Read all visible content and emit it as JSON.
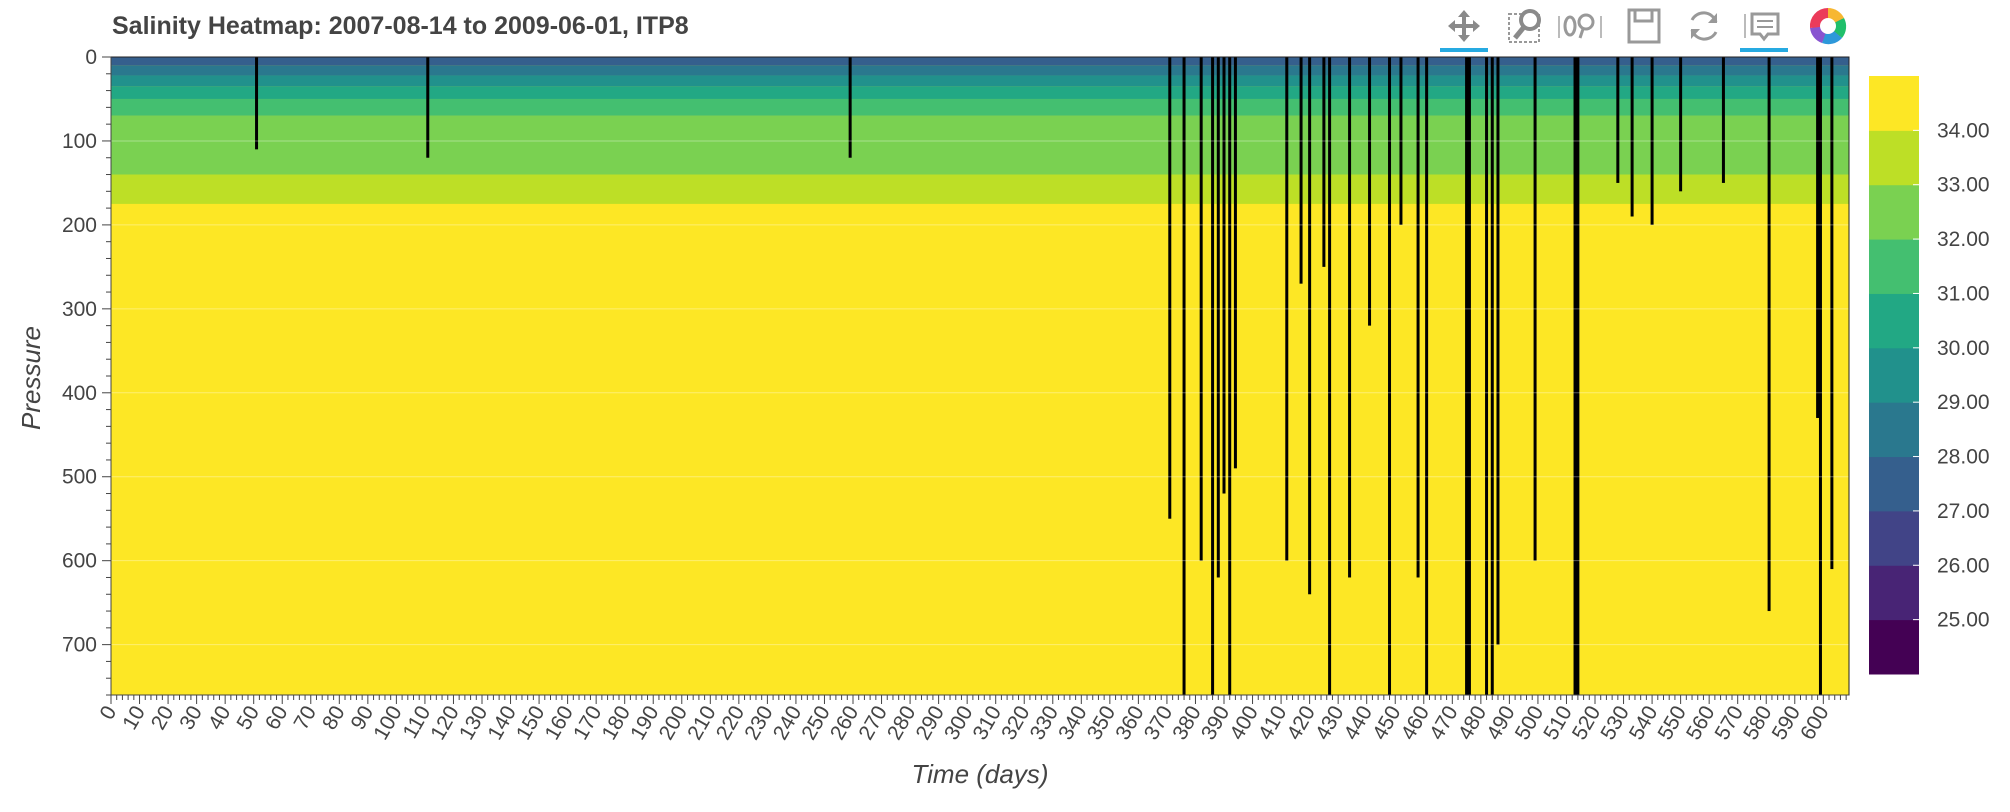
{
  "title": "Salinity Heatmap: 2007-08-14 to 2009-06-01, ITP8",
  "toolbar": {
    "tools": [
      {
        "name": "pan-tool",
        "icon": "move-arrows-icon",
        "active": true
      },
      {
        "name": "box-zoom-tool",
        "icon": "magnifier-box-icon",
        "active": false
      },
      {
        "name": "wheel-zoom-tool",
        "icon": "wheel-zoom-icon",
        "active": false
      },
      {
        "name": "save-tool",
        "icon": "floppy-disk-icon",
        "active": false
      },
      {
        "name": "reset-tool",
        "icon": "refresh-icon",
        "active": false
      },
      {
        "name": "hover-tool",
        "icon": "speech-bubble-icon",
        "active": true
      },
      {
        "name": "bokeh-logo",
        "icon": "bokeh-logo-icon",
        "active": false
      }
    ]
  },
  "chart_data": {
    "type": "heatmap",
    "title": "Salinity Heatmap: 2007-08-14 to 2009-06-01, ITP8",
    "xlabel": "Time (days)",
    "ylabel": "Pressure",
    "xlim": [
      0,
      609
    ],
    "ylim": [
      760,
      0
    ],
    "y_inverted": true,
    "x_ticks": [
      0,
      10,
      20,
      30,
      40,
      50,
      60,
      70,
      80,
      90,
      100,
      110,
      120,
      130,
      140,
      150,
      160,
      170,
      180,
      190,
      200,
      210,
      220,
      230,
      240,
      250,
      260,
      270,
      280,
      290,
      300,
      310,
      320,
      330,
      340,
      350,
      360,
      370,
      380,
      390,
      400,
      410,
      420,
      430,
      440,
      450,
      460,
      470,
      480,
      490,
      500,
      510,
      520,
      530,
      540,
      550,
      560,
      570,
      580,
      590,
      600
    ],
    "y_ticks": [
      0,
      100,
      200,
      300,
      400,
      500,
      600,
      700
    ],
    "colorbar": {
      "palette": [
        "#440154",
        "#482475",
        "#414487",
        "#355f8d",
        "#2a788e",
        "#21918c",
        "#22a884",
        "#44bf70",
        "#7ad151",
        "#bddf26",
        "#fde725"
      ],
      "ticks": [
        25.0,
        26.0,
        27.0,
        28.0,
        29.0,
        30.0,
        31.0,
        32.0,
        33.0,
        34.0
      ],
      "tick_labels": [
        "25.00",
        "26.00",
        "27.00",
        "28.00",
        "29.00",
        "30.00",
        "31.00",
        "32.00",
        "33.00",
        "34.00"
      ],
      "range": [
        24.0,
        35.0
      ]
    },
    "salinity_layers": [
      {
        "salinity": 34.0,
        "depth_top": 175
      },
      {
        "salinity": 33.0,
        "depth_top": 140
      },
      {
        "salinity": 32.0,
        "depth_top": 70
      },
      {
        "salinity": 31.0,
        "depth_top": 50
      },
      {
        "salinity": 30.0,
        "depth_top": 35
      },
      {
        "salinity": 29.0,
        "depth_top": 22
      },
      {
        "salinity": 28.0,
        "depth_top": 10
      },
      {
        "salinity": 27.0,
        "depth_top": 0
      }
    ],
    "missing_profiles": [
      {
        "day": 51,
        "depth_to": 110
      },
      {
        "day": 111,
        "depth_to": 120
      },
      {
        "day": 259,
        "depth_to": 120
      },
      {
        "day": 371,
        "depth_to": 550
      },
      {
        "day": 376,
        "depth_to": 760
      },
      {
        "day": 382,
        "depth_to": 600
      },
      {
        "day": 386,
        "depth_to": 760
      },
      {
        "day": 388,
        "depth_to": 620
      },
      {
        "day": 390,
        "depth_to": 520
      },
      {
        "day": 392,
        "depth_to": 760
      },
      {
        "day": 394,
        "depth_to": 490
      },
      {
        "day": 412,
        "depth_to": 600
      },
      {
        "day": 417,
        "depth_to": 270
      },
      {
        "day": 420,
        "depth_to": 640
      },
      {
        "day": 425,
        "depth_to": 250
      },
      {
        "day": 427,
        "depth_to": 760
      },
      {
        "day": 434,
        "depth_to": 620
      },
      {
        "day": 441,
        "depth_to": 320
      },
      {
        "day": 448,
        "depth_to": 760
      },
      {
        "day": 452,
        "depth_to": 200
      },
      {
        "day": 458,
        "depth_to": 620
      },
      {
        "day": 461,
        "depth_to": 760
      },
      {
        "day": 475,
        "depth_to": 760
      },
      {
        "day": 476,
        "depth_to": 760
      },
      {
        "day": 482,
        "depth_to": 760
      },
      {
        "day": 484,
        "depth_to": 760
      },
      {
        "day": 486,
        "depth_to": 700
      },
      {
        "day": 499,
        "depth_to": 600
      },
      {
        "day": 513,
        "depth_to": 760
      },
      {
        "day": 514,
        "depth_to": 760
      },
      {
        "day": 528,
        "depth_to": 150
      },
      {
        "day": 533,
        "depth_to": 190
      },
      {
        "day": 540,
        "depth_to": 200
      },
      {
        "day": 550,
        "depth_to": 160
      },
      {
        "day": 565,
        "depth_to": 150
      },
      {
        "day": 581,
        "depth_to": 660
      },
      {
        "day": 598,
        "depth_to": 430
      },
      {
        "day": 599,
        "depth_to": 760
      },
      {
        "day": 603,
        "depth_to": 610
      }
    ]
  }
}
